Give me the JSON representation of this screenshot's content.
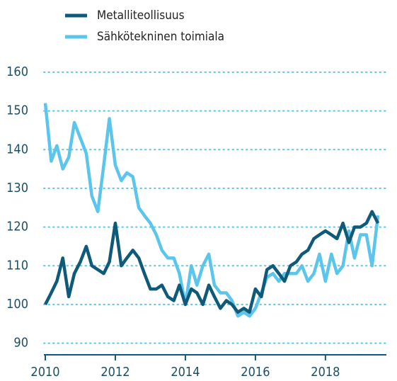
{
  "chart_data": {
    "type": "line",
    "x": [
      2010.0,
      2010.17,
      2010.33,
      2010.5,
      2010.67,
      2010.83,
      2011.0,
      2011.17,
      2011.33,
      2011.5,
      2011.67,
      2011.83,
      2012.0,
      2012.17,
      2012.33,
      2012.5,
      2012.67,
      2012.83,
      2013.0,
      2013.17,
      2013.33,
      2013.5,
      2013.67,
      2013.83,
      2014.0,
      2014.17,
      2014.33,
      2014.5,
      2014.67,
      2014.83,
      2015.0,
      2015.17,
      2015.33,
      2015.5,
      2015.67,
      2015.83,
      2016.0,
      2016.17,
      2016.33,
      2016.5,
      2016.67,
      2016.83,
      2017.0,
      2017.17,
      2017.33,
      2017.5,
      2017.67,
      2017.83,
      2018.0,
      2018.17,
      2018.33,
      2018.5,
      2018.67,
      2018.83,
      2019.0,
      2019.17,
      2019.33,
      2019.5
    ],
    "series": [
      {
        "name": "Metalliteollisuus",
        "color": "#0f5a78",
        "values": [
          100,
          103,
          106,
          112,
          102,
          108,
          111,
          115,
          110,
          109,
          108,
          111,
          121,
          110,
          112,
          114,
          112,
          108,
          104,
          104,
          105,
          102,
          101,
          105,
          100,
          104,
          103,
          100,
          105,
          102,
          99,
          101,
          100,
          98,
          99,
          98,
          104,
          102,
          109,
          110,
          108,
          106,
          110,
          111,
          113,
          114,
          117,
          118,
          119,
          118,
          117,
          121,
          116,
          120,
          120,
          121,
          124,
          121
        ]
      },
      {
        "name": "Sähkötekninen toimiala",
        "color": "#5bc5eb",
        "values": [
          152,
          137,
          141,
          135,
          138,
          147,
          143,
          139,
          128,
          124,
          136,
          148,
          136,
          132,
          134,
          133,
          125,
          123,
          121,
          118,
          114,
          112,
          112,
          108,
          100,
          110,
          105,
          110,
          113,
          105,
          103,
          103,
          101,
          97,
          98,
          97,
          99,
          103,
          107,
          108,
          106,
          108,
          108,
          108,
          110,
          106,
          108,
          113,
          106,
          113,
          108,
          110,
          119,
          112,
          118,
          118,
          110,
          123
        ]
      }
    ],
    "xlim": [
      2010,
      2019.7
    ],
    "xticks": [
      2010,
      2012,
      2014,
      2016,
      2018
    ],
    "ylim": [
      87,
      162
    ],
    "yticks": [
      90,
      100,
      110,
      120,
      130,
      140,
      150,
      160
    ],
    "grid": true,
    "legend": "top-left"
  }
}
